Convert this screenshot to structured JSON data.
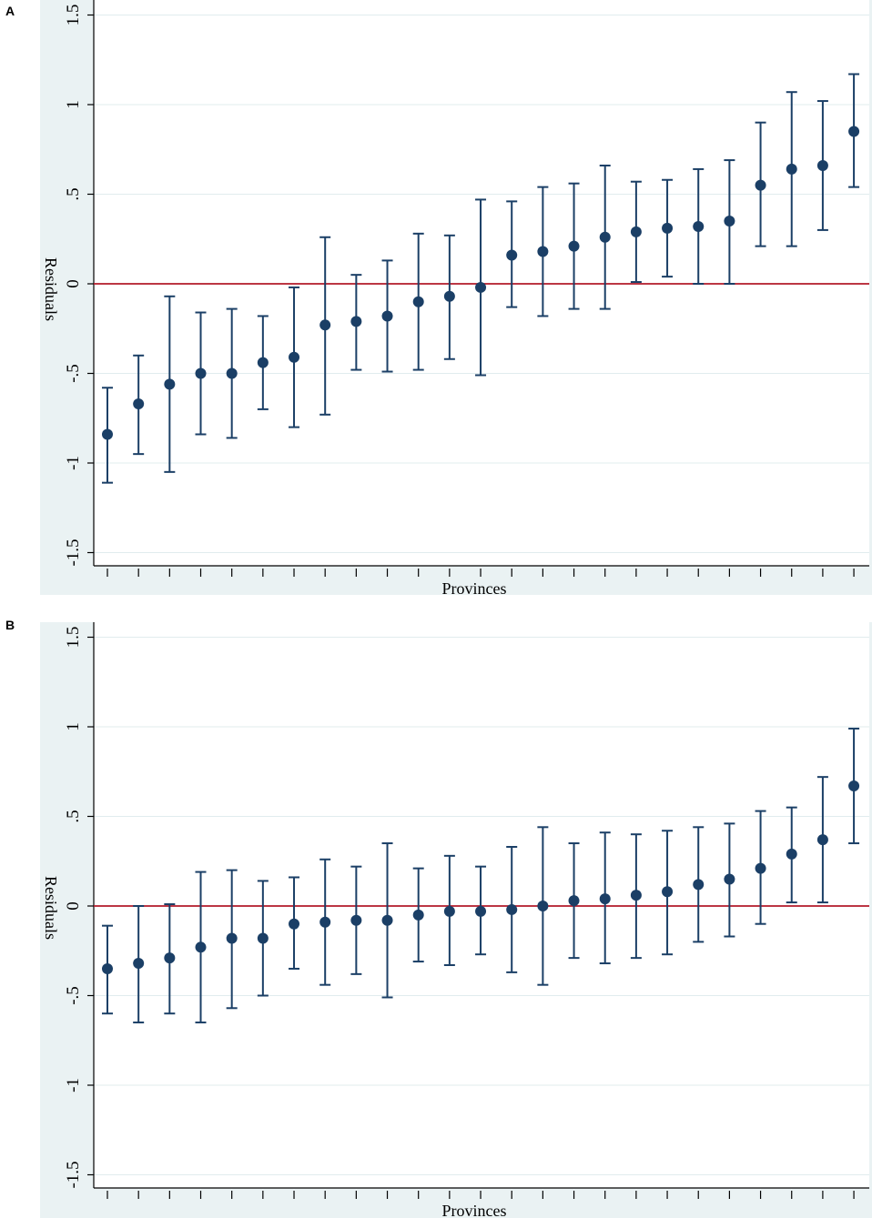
{
  "chart_data": [
    {
      "panel": "A",
      "type": "scatter",
      "xlabel": "Provinces",
      "ylabel": "Residuals",
      "ylim": [
        -1.5,
        1.5
      ],
      "yticks": [
        -1.5,
        -1,
        -0.5,
        0,
        0.5,
        1,
        1.5
      ],
      "ytick_labels": [
        "-1.5",
        "-1",
        "-.5",
        "0",
        ".5",
        "1",
        "1.5"
      ],
      "reference_line": 0,
      "grid": true,
      "colors": {
        "point": "#1b3f66",
        "reference": "#b3192a",
        "plot_bg": "#ffffff",
        "frame_bg": "#eaf2f3",
        "grid": "#e1ecee"
      },
      "points": [
        {
          "y": -0.84,
          "lo": -1.11,
          "hi": -0.58
        },
        {
          "y": -0.67,
          "lo": -0.95,
          "hi": -0.4
        },
        {
          "y": -0.56,
          "lo": -1.05,
          "hi": -0.07
        },
        {
          "y": -0.5,
          "lo": -0.84,
          "hi": -0.16
        },
        {
          "y": -0.5,
          "lo": -0.86,
          "hi": -0.14
        },
        {
          "y": -0.44,
          "lo": -0.7,
          "hi": -0.18
        },
        {
          "y": -0.41,
          "lo": -0.8,
          "hi": -0.02
        },
        {
          "y": -0.23,
          "lo": -0.73,
          "hi": 0.26
        },
        {
          "y": -0.21,
          "lo": -0.48,
          "hi": 0.05
        },
        {
          "y": -0.18,
          "lo": -0.49,
          "hi": 0.13
        },
        {
          "y": -0.1,
          "lo": -0.48,
          "hi": 0.28
        },
        {
          "y": -0.07,
          "lo": -0.42,
          "hi": 0.27
        },
        {
          "y": -0.02,
          "lo": -0.51,
          "hi": 0.47
        },
        {
          "y": 0.16,
          "lo": -0.13,
          "hi": 0.46
        },
        {
          "y": 0.18,
          "lo": -0.18,
          "hi": 0.54
        },
        {
          "y": 0.21,
          "lo": -0.14,
          "hi": 0.56
        },
        {
          "y": 0.26,
          "lo": -0.14,
          "hi": 0.66
        },
        {
          "y": 0.29,
          "lo": 0.01,
          "hi": 0.57
        },
        {
          "y": 0.31,
          "lo": 0.04,
          "hi": 0.58
        },
        {
          "y": 0.32,
          "lo": 0.0,
          "hi": 0.64
        },
        {
          "y": 0.35,
          "lo": 0.0,
          "hi": 0.69
        },
        {
          "y": 0.55,
          "lo": 0.21,
          "hi": 0.9
        },
        {
          "y": 0.64,
          "lo": 0.21,
          "hi": 1.07
        },
        {
          "y": 0.66,
          "lo": 0.3,
          "hi": 1.02
        },
        {
          "y": 0.85,
          "lo": 0.54,
          "hi": 1.17
        }
      ]
    },
    {
      "panel": "B",
      "type": "scatter",
      "xlabel": "Provinces",
      "ylabel": "Residuals",
      "ylim": [
        -1.5,
        1.5
      ],
      "yticks": [
        -1.5,
        -1,
        -0.5,
        0,
        0.5,
        1,
        1.5
      ],
      "ytick_labels": [
        "-1.5",
        "-1",
        "-.5",
        "0",
        ".5",
        "1",
        "1.5"
      ],
      "reference_line": 0,
      "grid": true,
      "colors": {
        "point": "#1b3f66",
        "reference": "#b3192a",
        "plot_bg": "#ffffff",
        "frame_bg": "#eaf2f3",
        "grid": "#e1ecee"
      },
      "points": [
        {
          "y": -0.35,
          "lo": -0.6,
          "hi": -0.11
        },
        {
          "y": -0.32,
          "lo": -0.65,
          "hi": 0.0
        },
        {
          "y": -0.29,
          "lo": -0.6,
          "hi": 0.01
        },
        {
          "y": -0.23,
          "lo": -0.65,
          "hi": 0.19
        },
        {
          "y": -0.18,
          "lo": -0.57,
          "hi": 0.2
        },
        {
          "y": -0.18,
          "lo": -0.5,
          "hi": 0.14
        },
        {
          "y": -0.1,
          "lo": -0.35,
          "hi": 0.16
        },
        {
          "y": -0.09,
          "lo": -0.44,
          "hi": 0.26
        },
        {
          "y": -0.08,
          "lo": -0.38,
          "hi": 0.22
        },
        {
          "y": -0.08,
          "lo": -0.51,
          "hi": 0.35
        },
        {
          "y": -0.05,
          "lo": -0.31,
          "hi": 0.21
        },
        {
          "y": -0.03,
          "lo": -0.33,
          "hi": 0.28
        },
        {
          "y": -0.03,
          "lo": -0.27,
          "hi": 0.22
        },
        {
          "y": -0.02,
          "lo": -0.37,
          "hi": 0.33
        },
        {
          "y": 0.0,
          "lo": -0.44,
          "hi": 0.44
        },
        {
          "y": 0.03,
          "lo": -0.29,
          "hi": 0.35
        },
        {
          "y": 0.04,
          "lo": -0.32,
          "hi": 0.41
        },
        {
          "y": 0.06,
          "lo": -0.29,
          "hi": 0.4
        },
        {
          "y": 0.08,
          "lo": -0.27,
          "hi": 0.42
        },
        {
          "y": 0.12,
          "lo": -0.2,
          "hi": 0.44
        },
        {
          "y": 0.15,
          "lo": -0.17,
          "hi": 0.46
        },
        {
          "y": 0.21,
          "lo": -0.1,
          "hi": 0.53
        },
        {
          "y": 0.29,
          "lo": 0.02,
          "hi": 0.55
        },
        {
          "y": 0.37,
          "lo": 0.02,
          "hi": 0.72
        },
        {
          "y": 0.67,
          "lo": 0.35,
          "hi": 0.99
        }
      ]
    }
  ]
}
